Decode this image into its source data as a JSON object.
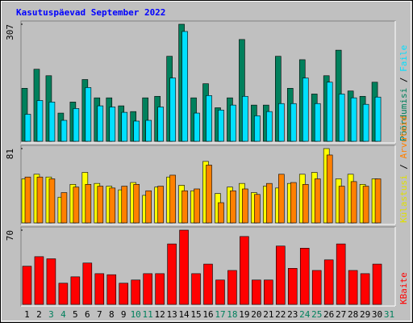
{
  "title": "Kasutuspäevad September 2022",
  "legend_separator": " / ",
  "chart_data": [
    {
      "type": "bar",
      "ylim": [
        0,
        307
      ],
      "yticks": [
        307
      ],
      "series": [
        {
          "name": "Pöördumisi",
          "color": "#00805c",
          "values": [
            139,
            189,
            172,
            74,
            103,
            162,
            114,
            114,
            93,
            78,
            114,
            118,
            223,
            307,
            114,
            151,
            88,
            114,
            267,
            95,
            95,
            223,
            139,
            214,
            124,
            172,
            239,
            132,
            118,
            155,
            0
          ]
        },
        {
          "name": "Faile",
          "color": "#00e0ff",
          "values": [
            71,
            107,
            103,
            55,
            86,
            141,
            93,
            90,
            76,
            53,
            55,
            90,
            166,
            288,
            74,
            120,
            82,
            95,
            118,
            67,
            78,
            99,
            99,
            166,
            99,
            155,
            124,
            114,
            97,
            116,
            0
          ]
        }
      ]
    },
    {
      "type": "bar",
      "ylim": [
        0,
        81
      ],
      "yticks": [
        81
      ],
      "series": [
        {
          "name": "Külastusi",
          "color": "#ffff00",
          "values": [
            48,
            53,
            50,
            28,
            42,
            55,
            43,
            40,
            36,
            44,
            30,
            39,
            50,
            41,
            35,
            67,
            32,
            39,
            43,
            33,
            40,
            38,
            43,
            53,
            55,
            81,
            48,
            53,
            42,
            48,
            0
          ]
        },
        {
          "name": "Arvuteid",
          "color": "#ff8000",
          "values": [
            50,
            50,
            48,
            33,
            39,
            42,
            40,
            38,
            40,
            42,
            35,
            40,
            52,
            35,
            37,
            63,
            22,
            35,
            37,
            31,
            43,
            53,
            44,
            42,
            48,
            74,
            40,
            45,
            40,
            48,
            0
          ]
        }
      ]
    },
    {
      "type": "bar",
      "ylim": [
        0,
        70
      ],
      "yticks": [
        70
      ],
      "categories": [
        "1",
        "2",
        "3",
        "4",
        "5",
        "6",
        "7",
        "8",
        "9",
        "10",
        "11",
        "12",
        "13",
        "14",
        "15",
        "16",
        "17",
        "18",
        "19",
        "20",
        "21",
        "22",
        "23",
        "24",
        "25",
        "26",
        "27",
        "28",
        "29",
        "30",
        "31"
      ],
      "category_colors": [
        "#000000",
        "#000000",
        "#00805c",
        "#00805c",
        "#000000",
        "#000000",
        "#000000",
        "#000000",
        "#000000",
        "#00805c",
        "#00805c",
        "#000000",
        "#000000",
        "#000000",
        "#000000",
        "#000000",
        "#00805c",
        "#00805c",
        "#000000",
        "#000000",
        "#000000",
        "#000000",
        "#000000",
        "#00805c",
        "#00805c",
        "#000000",
        "#000000",
        "#000000",
        "#000000",
        "#000000",
        "#00805c"
      ],
      "series": [
        {
          "name": "KBaite",
          "color": "#ff0000",
          "values": [
            36,
            45,
            43,
            20,
            26,
            39,
            29,
            28,
            20,
            23,
            29,
            29,
            57,
            70,
            29,
            38,
            23,
            32,
            64,
            23,
            23,
            55,
            34,
            53,
            32,
            42,
            57,
            32,
            29,
            38,
            0
          ]
        }
      ]
    }
  ]
}
